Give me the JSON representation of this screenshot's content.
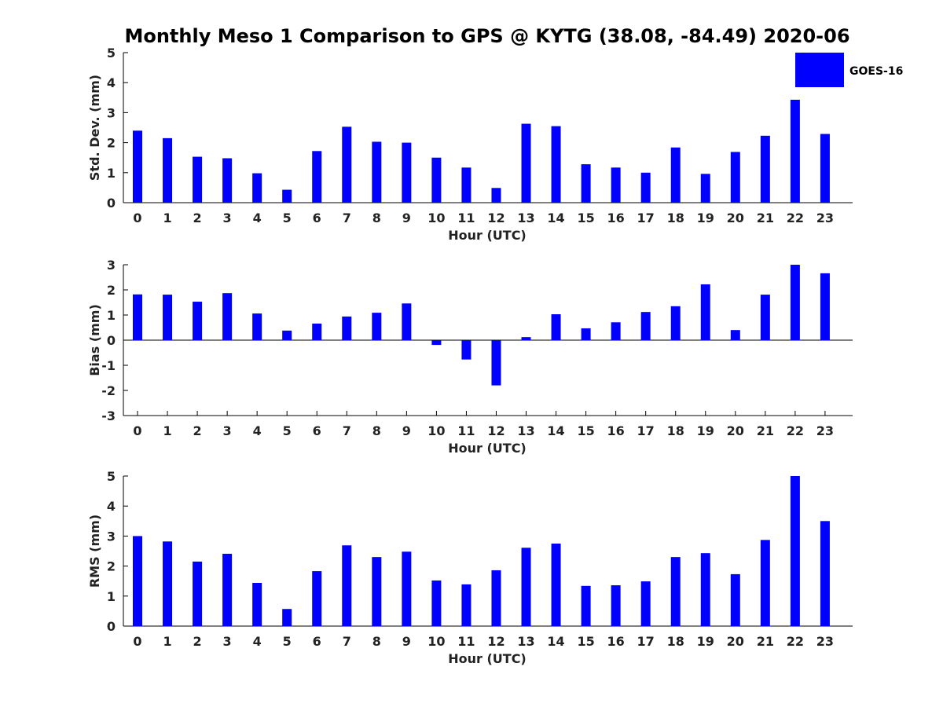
{
  "title": "Monthly Meso 1 Comparison to GPS @ KYTG (38.08, -84.49) 2020-06",
  "legend": {
    "label": "GOES-16",
    "color": "#0000ff"
  },
  "chart_data": [
    {
      "type": "bar",
      "title": "Monthly Meso 1 Comparison to GPS @ KYTG (38.08, -84.49) 2020-06",
      "xlabel": "Hour (UTC)",
      "ylabel": "Std. Dev. (mm)",
      "ylim": [
        0,
        5
      ],
      "yticks": [
        0,
        1,
        2,
        3,
        4,
        5
      ],
      "categories": [
        "0",
        "1",
        "2",
        "3",
        "4",
        "5",
        "6",
        "7",
        "8",
        "9",
        "10",
        "11",
        "12",
        "13",
        "14",
        "15",
        "16",
        "17",
        "18",
        "19",
        "20",
        "21",
        "22",
        "23"
      ],
      "series": [
        {
          "name": "GOES-16",
          "color": "#0000ff",
          "values": [
            2.4,
            2.15,
            1.53,
            1.48,
            0.98,
            0.43,
            1.72,
            2.53,
            2.03,
            2.0,
            1.5,
            1.17,
            0.49,
            2.63,
            2.55,
            1.28,
            1.17,
            1.0,
            1.84,
            0.96,
            1.69,
            2.23,
            3.43,
            2.29
          ]
        }
      ]
    },
    {
      "type": "bar",
      "xlabel": "Hour (UTC)",
      "ylabel": "Bias (mm)",
      "ylim": [
        -3,
        3
      ],
      "yticks": [
        -3,
        -2,
        -1,
        0,
        1,
        2,
        3
      ],
      "zero_line": true,
      "categories": [
        "0",
        "1",
        "2",
        "3",
        "4",
        "5",
        "6",
        "7",
        "8",
        "9",
        "10",
        "11",
        "12",
        "13",
        "14",
        "15",
        "16",
        "17",
        "18",
        "19",
        "20",
        "21",
        "22",
        "23"
      ],
      "series": [
        {
          "name": "GOES-16",
          "color": "#0000ff",
          "values": [
            1.82,
            1.81,
            1.53,
            1.87,
            1.06,
            0.38,
            0.66,
            0.94,
            1.09,
            1.46,
            -0.19,
            -0.77,
            -1.8,
            0.12,
            1.03,
            0.47,
            0.71,
            1.12,
            1.35,
            2.22,
            0.4,
            1.81,
            3.0,
            2.66
          ]
        }
      ]
    },
    {
      "type": "bar",
      "xlabel": "Hour (UTC)",
      "ylabel": "RMS (mm)",
      "ylim": [
        0,
        5
      ],
      "yticks": [
        0,
        1,
        2,
        3,
        4,
        5
      ],
      "categories": [
        "0",
        "1",
        "2",
        "3",
        "4",
        "5",
        "6",
        "7",
        "8",
        "9",
        "10",
        "11",
        "12",
        "13",
        "14",
        "15",
        "16",
        "17",
        "18",
        "19",
        "20",
        "21",
        "22",
        "23"
      ],
      "series": [
        {
          "name": "GOES-16",
          "color": "#0000ff",
          "values": [
            3.0,
            2.82,
            2.15,
            2.41,
            1.44,
            0.57,
            1.83,
            2.69,
            2.3,
            2.48,
            1.52,
            1.39,
            1.86,
            2.61,
            2.75,
            1.34,
            1.36,
            1.49,
            2.3,
            2.43,
            1.73,
            2.87,
            5.0,
            3.5
          ]
        }
      ]
    }
  ]
}
